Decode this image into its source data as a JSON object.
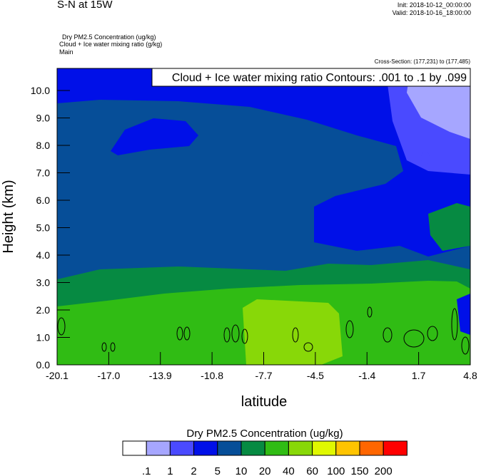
{
  "header": {
    "title": "S-N at 15W",
    "init": "Init: 2018-10-12_00:00:00",
    "valid": "Valid: 2018-10-16_18:00:00",
    "fields": [
      "Dry PM2.5 Concentration   (ug/kg)",
      "Cloud + Ice water mixing ratio   (g/kg)",
      "Main"
    ],
    "cross_section": "Cross-Section: (177,231) to (177,485)"
  },
  "chart_data": {
    "type": "heatmap",
    "title": "S-N at 15W",
    "xlabel": "latitude",
    "ylabel": "Height (km)",
    "xlim": [
      -20.1,
      4.8
    ],
    "ylim": [
      0,
      10.8
    ],
    "xticks": [
      "-20.1",
      "-17.0",
      "-13.9",
      "-10.8",
      "-7.7",
      "-4.5",
      "-1.4",
      "1.7",
      "4.8"
    ],
    "yticks": [
      "0.0",
      "1.0",
      "2.0",
      "3.0",
      "4.0",
      "5.0",
      "6.0",
      "7.0",
      "8.0",
      "9.0",
      "10.0"
    ],
    "contour_label": "Cloud + Ice water mixing ratio Contours: .001 to .1 by .099",
    "colorbar": {
      "title": "Dry PM2.5 Concentration  (ug/kg)",
      "levels": [
        ".1",
        "1",
        "2",
        "5",
        "10",
        "20",
        "40",
        "60",
        "100",
        "150",
        "200"
      ],
      "colors": [
        "#ffffff",
        "#a6a6ff",
        "#4a4aff",
        "#0010e8",
        "#064e98",
        "#068a42",
        "#30bc14",
        "#88d808",
        "#e0f800",
        "#ffc400",
        "#ff6600",
        "#ff0000"
      ]
    }
  }
}
